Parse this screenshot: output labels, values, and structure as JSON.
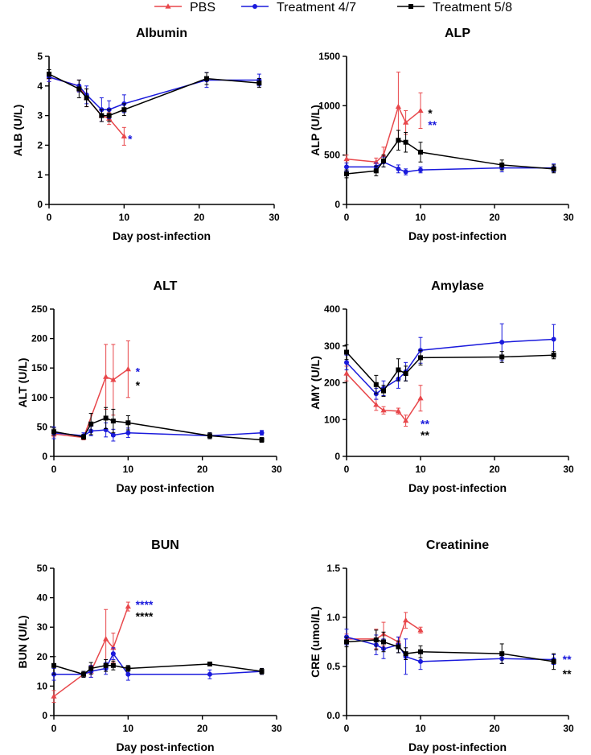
{
  "legend": [
    {
      "name": "PBS",
      "color": "#e8474b",
      "marker": "triangle"
    },
    {
      "name": "Treatment 4/7",
      "color": "#1a1adc",
      "marker": "circle"
    },
    {
      "name": "Treatment 5/8",
      "color": "#000000",
      "marker": "square"
    }
  ],
  "chart_data": [
    {
      "type": "line",
      "title": "Albumin",
      "xlabel": "Day post-infection",
      "ylabel": "ALB (U/L)",
      "xlim": [
        0,
        30
      ],
      "xticks": [
        0,
        10,
        20,
        30
      ],
      "ylim": [
        0,
        5
      ],
      "yticks": [
        0,
        1,
        2,
        3,
        4,
        5
      ],
      "yticklabels": [
        "0",
        "1",
        "2",
        "3",
        "4",
        "5"
      ],
      "series": [
        {
          "name": "PBS",
          "x": [
            0,
            4,
            5,
            7,
            8,
            10
          ],
          "y": [
            4.3,
            4.0,
            3.6,
            3.0,
            2.9,
            2.3
          ],
          "err": [
            0.15,
            0.2,
            0.3,
            0.2,
            0.2,
            0.3
          ]
        },
        {
          "name": "Treatment 4/7",
          "x": [
            0,
            4,
            5,
            7,
            8,
            10,
            21,
            28
          ],
          "y": [
            4.3,
            4.0,
            3.7,
            3.2,
            3.2,
            3.4,
            4.2,
            4.2
          ],
          "err": [
            0.15,
            0.2,
            0.3,
            0.4,
            0.3,
            0.3,
            0.25,
            0.2
          ]
        },
        {
          "name": "Treatment 5/8",
          "x": [
            0,
            4,
            5,
            7,
            8,
            10,
            21,
            28
          ],
          "y": [
            4.4,
            3.9,
            3.6,
            3.0,
            3.0,
            3.2,
            4.25,
            4.1
          ],
          "err": [
            0.15,
            0.3,
            0.3,
            0.2,
            0.2,
            0.2,
            0.2,
            0.15
          ]
        }
      ],
      "annotations": [
        {
          "text": "*",
          "color": "#1a1adc",
          "x": 10.5,
          "y": 2.3
        }
      ]
    },
    {
      "type": "line",
      "title": "ALP",
      "xlabel": "Day post-infection",
      "ylabel": "ALP (U/L)",
      "xlim": [
        0,
        30
      ],
      "xticks": [
        0,
        10,
        20,
        30
      ],
      "ylim": [
        0,
        1500
      ],
      "yticks": [
        0,
        500,
        1000,
        1500
      ],
      "yticklabels": [
        "0",
        "500",
        "1000",
        "1500"
      ],
      "series": [
        {
          "name": "PBS",
          "x": [
            0,
            4,
            5,
            7,
            8,
            10
          ],
          "y": [
            460,
            430,
            500,
            990,
            830,
            950
          ],
          "err": [
            40,
            40,
            80,
            350,
            120,
            180
          ]
        },
        {
          "name": "Treatment 4/7",
          "x": [
            0,
            4,
            5,
            7,
            8,
            10,
            21,
            28
          ],
          "y": [
            380,
            380,
            430,
            360,
            330,
            350,
            370,
            370
          ],
          "err": [
            40,
            40,
            50,
            40,
            30,
            30,
            40,
            40
          ]
        },
        {
          "name": "Treatment 5/8",
          "x": [
            0,
            4,
            5,
            7,
            8,
            10,
            21,
            28
          ],
          "y": [
            310,
            340,
            440,
            650,
            630,
            530,
            400,
            360
          ],
          "err": [
            40,
            50,
            60,
            100,
            100,
            100,
            50,
            40
          ]
        }
      ],
      "annotations": [
        {
          "text": "*",
          "color": "#000000",
          "x": 11,
          "y": 950
        },
        {
          "text": "**",
          "color": "#1a1adc",
          "x": 11,
          "y": 830
        }
      ]
    },
    {
      "type": "line",
      "title": "ALT",
      "xlabel": "Day post-infection",
      "ylabel": "ALT (U/L)",
      "xlim": [
        0,
        30
      ],
      "xticks": [
        0,
        10,
        20,
        30
      ],
      "ylim": [
        0,
        250
      ],
      "yticks": [
        0,
        50,
        100,
        150,
        200,
        250
      ],
      "yticklabels": [
        "0",
        "50",
        "100",
        "150",
        "200",
        "250"
      ],
      "series": [
        {
          "name": "PBS",
          "x": [
            0,
            4,
            7,
            8,
            10
          ],
          "y": [
            38,
            32,
            135,
            130,
            148
          ],
          "err": [
            5,
            4,
            55,
            60,
            48
          ]
        },
        {
          "name": "Treatment 4/7",
          "x": [
            0,
            4,
            5,
            7,
            8,
            10,
            21,
            28
          ],
          "y": [
            40,
            35,
            43,
            45,
            36,
            40,
            35,
            40
          ],
          "err": [
            10,
            5,
            8,
            12,
            10,
            8,
            5,
            4
          ]
        },
        {
          "name": "Treatment 5/8",
          "x": [
            0,
            4,
            5,
            7,
            8,
            10,
            21,
            28
          ],
          "y": [
            42,
            33,
            55,
            65,
            60,
            57,
            35,
            28
          ],
          "err": [
            6,
            4,
            18,
            18,
            20,
            12,
            5,
            4
          ]
        }
      ],
      "annotations": [
        {
          "text": "*",
          "color": "#1a1adc",
          "x": 11,
          "y": 148
        },
        {
          "text": "*",
          "color": "#000000",
          "x": 11,
          "y": 125
        }
      ]
    },
    {
      "type": "line",
      "title": "Amylase",
      "xlabel": "Day post-infection",
      "ylabel": "AMY (U/L)",
      "xlim": [
        0,
        30
      ],
      "xticks": [
        0,
        10,
        20,
        30
      ],
      "ylim": [
        0,
        400
      ],
      "yticks": [
        0,
        100,
        200,
        300,
        400
      ],
      "yticklabels": [
        "0",
        "100",
        "200",
        "300",
        "400"
      ],
      "series": [
        {
          "name": "PBS",
          "x": [
            0,
            4,
            5,
            7,
            8,
            10
          ],
          "y": [
            225,
            140,
            125,
            123,
            97,
            158
          ],
          "err": [
            20,
            15,
            10,
            8,
            15,
            35
          ]
        },
        {
          "name": "Treatment 4/7",
          "x": [
            0,
            4,
            5,
            7,
            8,
            10,
            21,
            28
          ],
          "y": [
            255,
            170,
            185,
            210,
            230,
            288,
            310,
            318
          ],
          "err": [
            20,
            15,
            20,
            25,
            25,
            35,
            50,
            40
          ]
        },
        {
          "name": "Treatment 5/8",
          "x": [
            0,
            4,
            5,
            7,
            8,
            10,
            21,
            28
          ],
          "y": [
            283,
            195,
            178,
            235,
            225,
            268,
            270,
            275
          ],
          "err": [
            20,
            25,
            15,
            30,
            20,
            20,
            15,
            10
          ]
        }
      ],
      "annotations": [
        {
          "text": "**",
          "color": "#1a1adc",
          "x": 10,
          "y": 95
        },
        {
          "text": "**",
          "color": "#000000",
          "x": 10,
          "y": 65
        }
      ]
    },
    {
      "type": "line",
      "title": "BUN",
      "xlabel": "Day post-infection",
      "ylabel": "BUN (U/L)",
      "xlim": [
        0,
        30
      ],
      "xticks": [
        0,
        10,
        20,
        30
      ],
      "ylim": [
        0,
        50
      ],
      "yticks": [
        0,
        10,
        20,
        30,
        40,
        50
      ],
      "yticklabels": [
        "0",
        "10",
        "20",
        "30",
        "40",
        "50"
      ],
      "series": [
        {
          "name": "PBS",
          "x": [
            0,
            4,
            5,
            7,
            8,
            10
          ],
          "y": [
            6.5,
            14,
            15,
            26,
            23,
            37
          ],
          "err": [
            2,
            1,
            2,
            10,
            5,
            1.5
          ]
        },
        {
          "name": "Treatment 4/7",
          "x": [
            0,
            4,
            5,
            7,
            8,
            10,
            21,
            28
          ],
          "y": [
            14,
            14,
            15,
            16,
            21,
            14,
            14,
            15
          ],
          "err": [
            2,
            1,
            2,
            2,
            2,
            2,
            1.5,
            1
          ]
        },
        {
          "name": "Treatment 5/8",
          "x": [
            0,
            4,
            5,
            7,
            8,
            10,
            21,
            28
          ],
          "y": [
            17,
            14,
            16,
            17,
            17,
            16,
            17.5,
            15
          ],
          "err": [
            3,
            1,
            2,
            2,
            1.5,
            1,
            0.5,
            1
          ]
        }
      ],
      "annotations": [
        {
          "text": "****",
          "color": "#1a1adc",
          "x": 11,
          "y": 38.5
        },
        {
          "text": "****",
          "color": "#000000",
          "x": 11,
          "y": 34.5
        }
      ]
    },
    {
      "type": "line",
      "title": "Creatinine",
      "xlabel": "Day post-infection",
      "ylabel": "CRE (umol/L)",
      "xlim": [
        0,
        30
      ],
      "xticks": [
        0,
        10,
        20,
        30
      ],
      "ylim": [
        0,
        1.5
      ],
      "yticks": [
        0,
        0.5,
        1.0,
        1.5
      ],
      "yticklabels": [
        "0.0",
        "0.5",
        "1.0",
        "1.5"
      ],
      "series": [
        {
          "name": "PBS",
          "x": [
            0,
            4,
            5,
            7,
            8,
            10
          ],
          "y": [
            0.78,
            0.78,
            0.83,
            0.75,
            0.97,
            0.87
          ],
          "err": [
            0.05,
            0.1,
            0.12,
            0.05,
            0.08,
            0.03
          ]
        },
        {
          "name": "Treatment 4/7",
          "x": [
            0,
            4,
            5,
            7,
            8,
            10,
            21,
            28
          ],
          "y": [
            0.8,
            0.72,
            0.68,
            0.72,
            0.6,
            0.55,
            0.58,
            0.57
          ],
          "err": [
            0.08,
            0.1,
            0.1,
            0.08,
            0.18,
            0.08,
            0.05,
            0.05
          ]
        },
        {
          "name": "Treatment 5/8",
          "x": [
            0,
            4,
            5,
            7,
            8,
            10,
            21,
            28
          ],
          "y": [
            0.75,
            0.77,
            0.75,
            0.7,
            0.63,
            0.65,
            0.63,
            0.55
          ],
          "err": [
            0.05,
            0.1,
            0.1,
            0.06,
            0.06,
            0.06,
            0.1,
            0.08
          ]
        }
      ],
      "annotations": [
        {
          "text": "**",
          "color": "#1a1adc",
          "x": 29.2,
          "y": 0.6
        },
        {
          "text": "**",
          "color": "#000000",
          "x": 29.2,
          "y": 0.45
        }
      ]
    }
  ]
}
